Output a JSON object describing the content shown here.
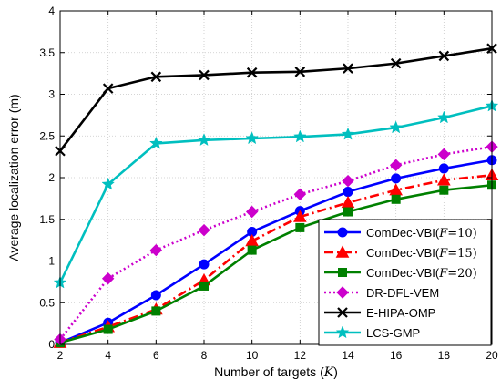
{
  "chart_data": {
    "type": "line",
    "title": "",
    "xlabel": "Number of targets (K)",
    "xlabel_main": "Number of targets (",
    "xlabel_var": "K",
    "xlabel_close": ")",
    "ylabel": "Average localization error (m)",
    "xlim": [
      2,
      20
    ],
    "ylim": [
      0,
      4
    ],
    "xticks": [
      2,
      4,
      6,
      8,
      10,
      12,
      14,
      16,
      18,
      20
    ],
    "yticks": [
      0,
      0.5,
      1,
      1.5,
      2,
      2.5,
      3,
      3.5,
      4
    ],
    "ytick_labels": [
      "0",
      "0.5",
      "1",
      "1.5",
      "2",
      "2.5",
      "3",
      "3.5",
      "4"
    ],
    "grid": true,
    "legend_position": "bottom-right",
    "x": [
      2,
      4,
      6,
      8,
      10,
      12,
      14,
      16,
      18,
      20
    ],
    "series": [
      {
        "name": "ComDec-VBI(F=10)",
        "name_prefix": "ComDec-VBI(",
        "name_var": "F",
        "name_suffix": "=10)",
        "color": "#0000ff",
        "dash": "solid",
        "marker": "circle",
        "values": [
          0.02,
          0.26,
          0.59,
          0.96,
          1.35,
          1.6,
          1.83,
          1.99,
          2.11,
          2.21
        ]
      },
      {
        "name": "ComDec-VBI(F=15)",
        "name_prefix": "ComDec-VBI(",
        "name_var": "F",
        "name_suffix": "=15)",
        "color": "#ff0000",
        "dash": "dashdot",
        "marker": "triangle",
        "values": [
          0.02,
          0.21,
          0.42,
          0.77,
          1.24,
          1.53,
          1.7,
          1.85,
          1.97,
          2.03
        ]
      },
      {
        "name": "ComDec-VBI(F=20)",
        "name_prefix": "ComDec-VBI(",
        "name_var": "F",
        "name_suffix": "=20)",
        "color": "#008000",
        "dash": "solid",
        "marker": "square",
        "values": [
          0.02,
          0.18,
          0.4,
          0.7,
          1.13,
          1.4,
          1.59,
          1.74,
          1.85,
          1.91
        ]
      },
      {
        "name": "DR-DFL-VEM",
        "name_prefix": "DR-DFL-VEM",
        "name_var": "",
        "name_suffix": "",
        "color": "#cc00cc",
        "dash": "dotted",
        "marker": "diamond",
        "values": [
          0.06,
          0.79,
          1.13,
          1.37,
          1.59,
          1.8,
          1.96,
          2.15,
          2.28,
          2.37
        ]
      },
      {
        "name": "E-HIPA-OMP",
        "name_prefix": "E-HIPA-OMP",
        "name_var": "",
        "name_suffix": "",
        "color": "#000000",
        "dash": "solid",
        "marker": "x",
        "values": [
          2.32,
          3.07,
          3.21,
          3.23,
          3.26,
          3.27,
          3.31,
          3.37,
          3.46,
          3.55
        ]
      },
      {
        "name": "LCS-GMP",
        "name_prefix": "LCS-GMP",
        "name_var": "",
        "name_suffix": "",
        "color": "#00bfbf",
        "dash": "solid",
        "marker": "star",
        "values": [
          0.74,
          1.92,
          2.41,
          2.45,
          2.47,
          2.49,
          2.52,
          2.6,
          2.72,
          2.86
        ]
      }
    ]
  }
}
